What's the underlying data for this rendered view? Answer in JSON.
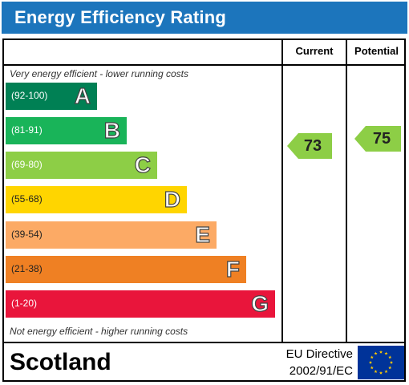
{
  "title": "Energy Efficiency Rating",
  "headers": {
    "current": "Current",
    "potential": "Potential"
  },
  "top_caption": "Very energy efficient - lower running costs",
  "bottom_caption": "Not energy efficient - higher running costs",
  "footer": {
    "region": "Scotland",
    "directive_line1": "EU Directive",
    "directive_line2": "2002/91/EC"
  },
  "colors": {
    "title_bg": "#1c75bc",
    "flag": "#003399",
    "stars": "#ffcc00"
  },
  "chart_data": {
    "type": "bar",
    "bands": [
      {
        "letter": "A",
        "range": "(92-100)",
        "color": "#008054"
      },
      {
        "letter": "B",
        "range": "(81-91)",
        "color": "#19b459"
      },
      {
        "letter": "C",
        "range": "(69-80)",
        "color": "#8dce46"
      },
      {
        "letter": "D",
        "range": "(55-68)",
        "color": "#ffd500"
      },
      {
        "letter": "E",
        "range": "(39-54)",
        "color": "#fcaa65"
      },
      {
        "letter": "F",
        "range": "(21-38)",
        "color": "#ef8023"
      },
      {
        "letter": "G",
        "range": "(1-20)",
        "color": "#e9153b"
      }
    ],
    "current": {
      "value": 73,
      "band": "C"
    },
    "potential": {
      "value": 75,
      "band": "C"
    }
  }
}
